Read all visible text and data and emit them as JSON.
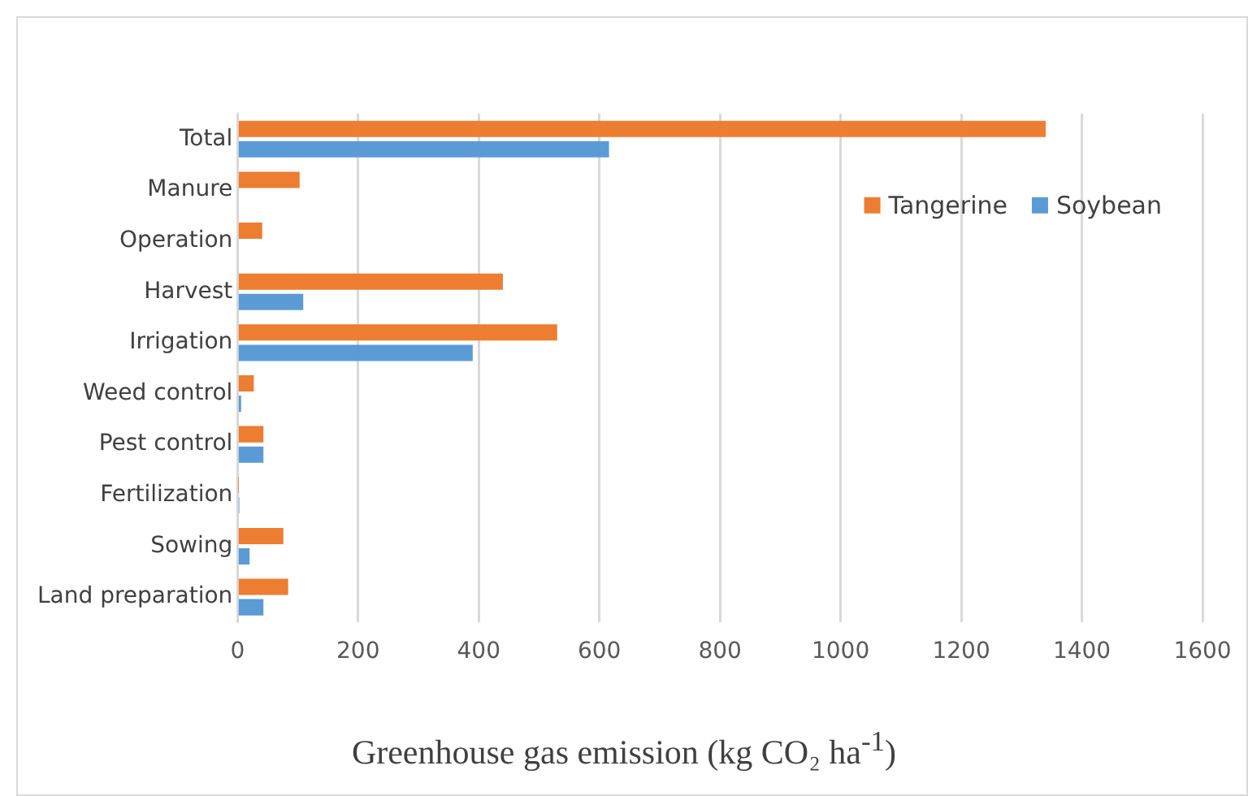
{
  "chart_data": {
    "type": "bar",
    "orientation": "horizontal",
    "xlabel": "Greenhouse gas emission (kg CO₂ ha$^{-1}$)",
    "categories": [
      "Total",
      "Manure",
      "Operation",
      "Harvest",
      "Irrigation",
      "Weed control",
      "Pest control",
      "Fertilization",
      "Sowing",
      "Land preparation"
    ],
    "series": [
      {
        "name": "Tangerine",
        "color": "#ed7d31",
        "values": [
          1340,
          103,
          41,
          440,
          530,
          27,
          43,
          1,
          76,
          84
        ]
      },
      {
        "name": "Soybean",
        "color": "#5b9bd5",
        "values": [
          616,
          null,
          null,
          109,
          390,
          6,
          43,
          3,
          20,
          43
        ]
      }
    ],
    "xlim": [
      0,
      1600
    ],
    "xticks": [
      0,
      200,
      400,
      600,
      800,
      1000,
      1200,
      1400,
      1600
    ],
    "grid": "x",
    "legend": "right"
  }
}
